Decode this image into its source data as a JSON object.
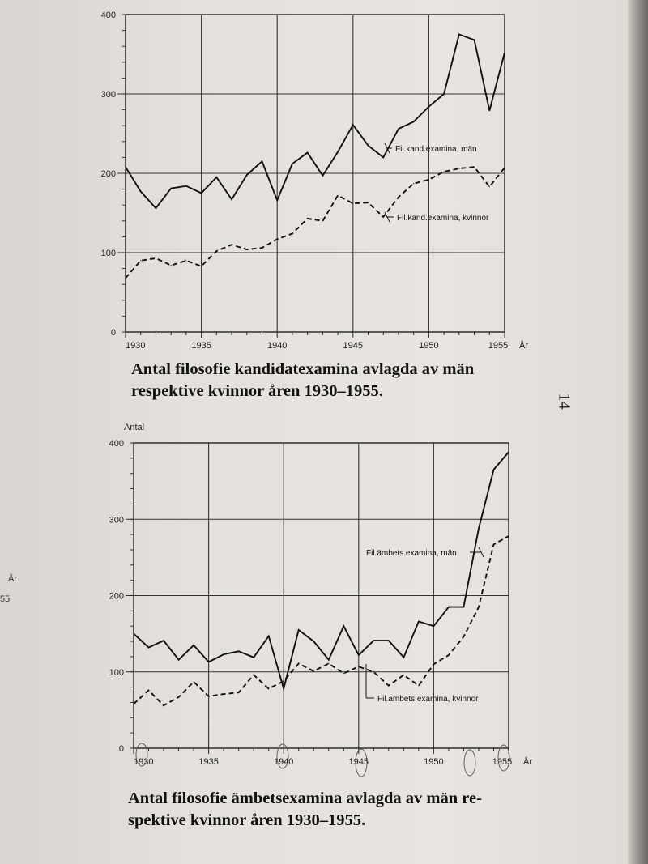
{
  "page_number": "14",
  "stray_margin": {
    "unit": "År",
    "year_fragment": "55"
  },
  "chart_data": [
    {
      "type": "line",
      "caption_lines": [
        "Antal filosofie kandidatexamina avlagda av män",
        "respektive kvinnor åren 1930–1955."
      ],
      "ylabel": "",
      "xunit": "År",
      "xlim": [
        1930,
        1955
      ],
      "ylim": [
        0,
        400
      ],
      "xticks": [
        "1930",
        "1935",
        "1940",
        "1945",
        "1950",
        "1955"
      ],
      "yticks": [
        "0",
        "100",
        "200",
        "300",
        "400"
      ],
      "grid": true,
      "x": [
        1930,
        1931,
        1932,
        1933,
        1934,
        1935,
        1936,
        1937,
        1938,
        1939,
        1940,
        1941,
        1942,
        1943,
        1944,
        1945,
        1946,
        1947,
        1948,
        1949,
        1950,
        1951,
        1952,
        1953,
        1954,
        1955
      ],
      "series": [
        {
          "name": "Fil.kand.examina, män",
          "style": "solid",
          "values": [
            208,
            177,
            156,
            181,
            184,
            175,
            195,
            167,
            198,
            215,
            166,
            212,
            226,
            197,
            227,
            261,
            235,
            220,
            256,
            265,
            284,
            300,
            375,
            368,
            279,
            352
          ]
        },
        {
          "name": "Fil.kand.examina, kvinnor",
          "style": "dashed",
          "values": [
            68,
            90,
            93,
            84,
            90,
            83,
            102,
            110,
            104,
            106,
            117,
            124,
            143,
            140,
            172,
            162,
            163,
            145,
            170,
            187,
            192,
            202,
            206,
            208,
            183,
            207
          ]
        }
      ]
    },
    {
      "type": "line",
      "caption_lines": [
        "Antal filosofie ämbetsexamina avlagda av män re-",
        "spektive kvinnor åren 1930–1955."
      ],
      "ylabel": "Antal",
      "xunit": "År",
      "xlim": [
        1930,
        1955
      ],
      "ylim": [
        0,
        400
      ],
      "xticks": [
        "1930",
        "1935",
        "1940",
        "1945",
        "1950",
        "1955"
      ],
      "yticks": [
        "0",
        "100",
        "200",
        "300",
        "400"
      ],
      "grid": true,
      "x": [
        1930,
        1931,
        1932,
        1933,
        1934,
        1935,
        1936,
        1937,
        1938,
        1939,
        1940,
        1941,
        1942,
        1943,
        1944,
        1945,
        1946,
        1947,
        1948,
        1949,
        1950,
        1951,
        1952,
        1953,
        1954,
        1955
      ],
      "series": [
        {
          "name": "Fil.ämbets examina, män",
          "style": "solid",
          "values": [
            150,
            132,
            141,
            116,
            135,
            113,
            123,
            127,
            119,
            147,
            78,
            155,
            140,
            116,
            160,
            122,
            141,
            141,
            119,
            166,
            160,
            185,
            185,
            288,
            365,
            388
          ]
        },
        {
          "name": "Fil.ämbets examina, kvinnor",
          "style": "dashed",
          "values": [
            58,
            76,
            56,
            67,
            87,
            68,
            71,
            73,
            96,
            78,
            88,
            111,
            101,
            111,
            98,
            107,
            100,
            82,
            96,
            82,
            110,
            122,
            146,
            185,
            267,
            278
          ]
        }
      ]
    }
  ]
}
